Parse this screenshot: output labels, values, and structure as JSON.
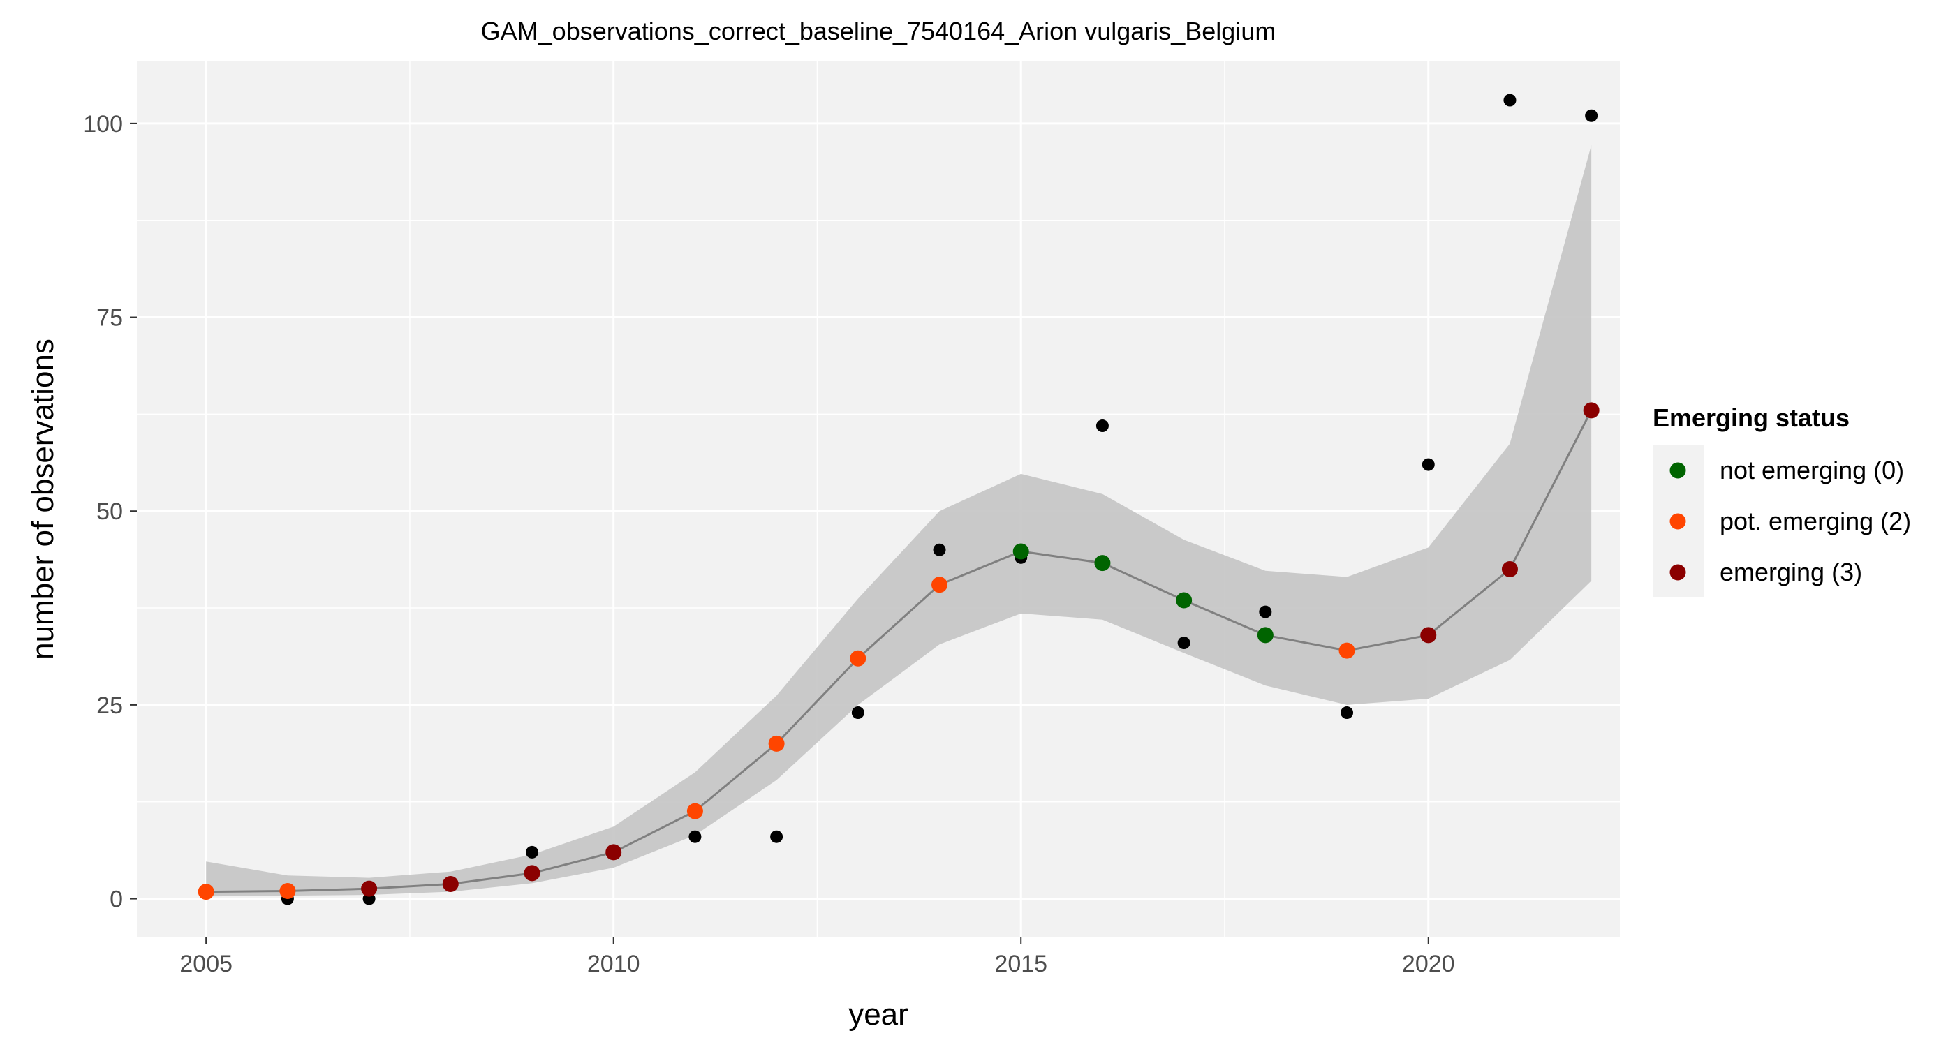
{
  "chart_data": {
    "type": "scatter",
    "title": "GAM_observations_correct_baseline_7540164_Arion vulgaris_Belgium",
    "xlabel": "year",
    "ylabel": "number of observations",
    "xlim": [
      2004.15,
      2022.35
    ],
    "ylim": [
      -4.9,
      108
    ],
    "x_ticks": [
      2005,
      2010,
      2015,
      2020
    ],
    "y_ticks": [
      0,
      25,
      50,
      75,
      100
    ],
    "grid": true,
    "legend": {
      "title": "Emerging status",
      "position": "right",
      "entries": [
        {
          "label": "not emerging (0)",
          "color": "#006400"
        },
        {
          "label": "pot. emerging (2)",
          "color": "#FF4500"
        },
        {
          "label": "emerging (3)",
          "color": "#8B0000"
        }
      ]
    },
    "colors": {
      "panel": "#F2F2F2",
      "grid": "#FFFFFF",
      "band": "#C4C4C4",
      "fit_line": "#808080",
      "observed": "#000000"
    },
    "observed": {
      "x": [
        2005,
        2006,
        2007,
        2008,
        2009,
        2010,
        2011,
        2012,
        2013,
        2014,
        2015,
        2016,
        2017,
        2018,
        2019,
        2020,
        2021,
        2022
      ],
      "y": [
        1,
        0,
        0,
        2,
        6,
        6,
        8,
        8,
        24,
        45,
        44,
        61,
        33,
        37,
        24,
        56,
        103,
        101
      ]
    },
    "fit": {
      "x": [
        2005,
        2006,
        2007,
        2008,
        2009,
        2010,
        2011,
        2012,
        2013,
        2014,
        2015,
        2016,
        2017,
        2018,
        2019,
        2020,
        2021,
        2022
      ],
      "y": [
        0.9,
        1.0,
        1.3,
        1.9,
        3.3,
        6.0,
        11.3,
        20.0,
        31.0,
        40.5,
        44.8,
        43.3,
        38.5,
        34.0,
        32.0,
        34.0,
        42.5,
        63.0
      ],
      "lower": [
        0.3,
        0.4,
        0.5,
        0.9,
        2.0,
        4.0,
        8.2,
        15.3,
        25.0,
        32.8,
        36.8,
        36.0,
        31.7,
        27.5,
        25.0,
        25.8,
        30.8,
        41.0
      ],
      "upper": [
        4.8,
        3.0,
        2.7,
        3.5,
        5.7,
        9.3,
        16.3,
        26.2,
        38.7,
        50.0,
        54.8,
        52.2,
        46.3,
        42.3,
        41.5,
        45.3,
        58.7,
        97.2
      ],
      "status": [
        "pot. emerging (2)",
        "pot. emerging (2)",
        "emerging (3)",
        "emerging (3)",
        "emerging (3)",
        "emerging (3)",
        "pot. emerging (2)",
        "pot. emerging (2)",
        "pot. emerging (2)",
        "pot. emerging (2)",
        "not emerging (0)",
        "not emerging (0)",
        "not emerging (0)",
        "not emerging (0)",
        "pot. emerging (2)",
        "emerging (3)",
        "emerging (3)",
        "emerging (3)"
      ]
    }
  }
}
